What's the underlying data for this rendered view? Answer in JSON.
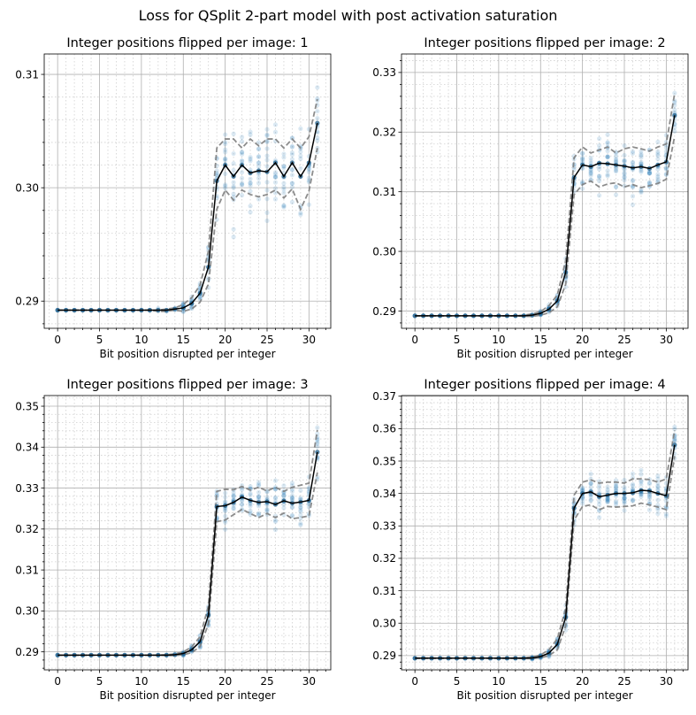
{
  "suptitle": "Loss for QSplit 2-part model with post activation saturation",
  "colors": {
    "scatter": "#1f77b4",
    "mean_line": "#000000",
    "band_line": "#808080",
    "grid_major": "#b0b0b0",
    "grid_minor": "#d0d0d0"
  },
  "chart_data": [
    {
      "type": "line",
      "title": "Integer positions flipped per image: 1",
      "xlabel": "Bit position disrupted per integer",
      "ylabel": "",
      "xlim": [
        -1.6,
        32.6
      ],
      "ylim": [
        0.2876,
        0.3118
      ],
      "xticks": [
        0,
        5,
        10,
        15,
        20,
        25,
        30
      ],
      "xtick_labels": [
        "0",
        "5",
        "10",
        "15",
        "20",
        "25",
        "30"
      ],
      "yticks": [
        0.29,
        0.3,
        0.31
      ],
      "ytick_labels": [
        "0.29",
        "0.30",
        "0.31"
      ],
      "grid": true,
      "x": [
        0,
        1,
        2,
        3,
        4,
        5,
        6,
        7,
        8,
        9,
        10,
        11,
        12,
        13,
        14,
        15,
        16,
        17,
        18,
        19,
        20,
        21,
        22,
        23,
        24,
        25,
        26,
        27,
        28,
        29,
        30,
        31
      ],
      "series": [
        {
          "role": "mean",
          "values": [
            0.2892,
            0.2892,
            0.2892,
            0.2892,
            0.2892,
            0.2892,
            0.2892,
            0.2892,
            0.2892,
            0.2892,
            0.2892,
            0.2892,
            0.2892,
            0.2892,
            0.2893,
            0.2894,
            0.2898,
            0.2907,
            0.293,
            0.3006,
            0.302,
            0.301,
            0.302,
            0.3013,
            0.3015,
            0.3014,
            0.3022,
            0.301,
            0.3022,
            0.301,
            0.3022,
            0.3057
          ]
        },
        {
          "role": "upper",
          "values": [
            0.2892,
            0.2892,
            0.2892,
            0.2892,
            0.2892,
            0.2892,
            0.2892,
            0.2892,
            0.2892,
            0.2892,
            0.2892,
            0.2892,
            0.2892,
            0.2893,
            0.2894,
            0.2897,
            0.2903,
            0.2914,
            0.2944,
            0.3035,
            0.3043,
            0.3043,
            0.3035,
            0.3043,
            0.3037,
            0.3043,
            0.3043,
            0.3035,
            0.3043,
            0.3035,
            0.3045,
            0.3078
          ]
        },
        {
          "role": "lower",
          "values": [
            0.2892,
            0.2892,
            0.2892,
            0.2892,
            0.2892,
            0.2892,
            0.2892,
            0.2892,
            0.2892,
            0.2892,
            0.2892,
            0.2892,
            0.2891,
            0.2891,
            0.2892,
            0.2891,
            0.2893,
            0.2899,
            0.2915,
            0.2981,
            0.2998,
            0.2989,
            0.2998,
            0.2994,
            0.2992,
            0.2994,
            0.2998,
            0.2991,
            0.2999,
            0.2981,
            0.2997,
            0.3035
          ]
        }
      ]
    },
    {
      "type": "line",
      "title": "Integer positions flipped per image: 2",
      "xlabel": "Bit position disrupted per integer",
      "ylabel": "",
      "xlim": [
        -1.6,
        32.6
      ],
      "ylim": [
        0.2871,
        0.3331
      ],
      "xticks": [
        0,
        5,
        10,
        15,
        20,
        25,
        30
      ],
      "xtick_labels": [
        "0",
        "5",
        "10",
        "15",
        "20",
        "25",
        "30"
      ],
      "yticks": [
        0.29,
        0.3,
        0.31,
        0.32,
        0.33
      ],
      "ytick_labels": [
        "0.29",
        "0.30",
        "0.31",
        "0.32",
        "0.33"
      ],
      "grid": true,
      "x": [
        0,
        1,
        2,
        3,
        4,
        5,
        6,
        7,
        8,
        9,
        10,
        11,
        12,
        13,
        14,
        15,
        16,
        17,
        18,
        19,
        20,
        21,
        22,
        23,
        24,
        25,
        26,
        27,
        28,
        29,
        30,
        31
      ],
      "series": [
        {
          "role": "mean",
          "values": [
            0.2892,
            0.2892,
            0.2892,
            0.2892,
            0.2892,
            0.2892,
            0.2892,
            0.2892,
            0.2892,
            0.2892,
            0.2892,
            0.2892,
            0.2892,
            0.2892,
            0.2893,
            0.2896,
            0.2903,
            0.2917,
            0.2965,
            0.3124,
            0.3145,
            0.3142,
            0.3148,
            0.3147,
            0.3145,
            0.3143,
            0.314,
            0.3142,
            0.3139,
            0.3145,
            0.315,
            0.3228
          ]
        },
        {
          "role": "upper",
          "values": [
            0.2892,
            0.2892,
            0.2892,
            0.2892,
            0.2892,
            0.2892,
            0.2892,
            0.2892,
            0.2892,
            0.2892,
            0.2892,
            0.2892,
            0.2892,
            0.2893,
            0.2895,
            0.2899,
            0.2909,
            0.2927,
            0.2985,
            0.3157,
            0.3175,
            0.3165,
            0.317,
            0.3175,
            0.3165,
            0.3172,
            0.3175,
            0.3172,
            0.3168,
            0.3175,
            0.318,
            0.3265
          ]
        },
        {
          "role": "lower",
          "values": [
            0.2892,
            0.2892,
            0.2892,
            0.2892,
            0.2892,
            0.2892,
            0.2892,
            0.2892,
            0.2892,
            0.2892,
            0.2892,
            0.2892,
            0.2892,
            0.2891,
            0.2891,
            0.2893,
            0.2897,
            0.2907,
            0.2945,
            0.3095,
            0.3112,
            0.3118,
            0.3108,
            0.3113,
            0.3115,
            0.3108,
            0.3112,
            0.3107,
            0.311,
            0.3114,
            0.3121,
            0.3193
          ]
        }
      ]
    },
    {
      "type": "line",
      "title": "Integer positions flipped per image: 3",
      "xlabel": "Bit position disrupted per integer",
      "ylabel": "",
      "xlim": [
        -1.6,
        32.6
      ],
      "ylim": [
        0.2856,
        0.3526
      ],
      "xticks": [
        0,
        5,
        10,
        15,
        20,
        25,
        30
      ],
      "xtick_labels": [
        "0",
        "5",
        "10",
        "15",
        "20",
        "25",
        "30"
      ],
      "yticks": [
        0.29,
        0.3,
        0.31,
        0.32,
        0.33,
        0.34,
        0.35
      ],
      "ytick_labels": [
        "0.29",
        "0.30",
        "0.31",
        "0.32",
        "0.33",
        "0.34",
        "0.35"
      ],
      "grid": true,
      "x": [
        0,
        1,
        2,
        3,
        4,
        5,
        6,
        7,
        8,
        9,
        10,
        11,
        12,
        13,
        14,
        15,
        16,
        17,
        18,
        19,
        20,
        21,
        22,
        23,
        24,
        25,
        26,
        27,
        28,
        29,
        30,
        31
      ],
      "series": [
        {
          "role": "mean",
          "values": [
            0.2892,
            0.2892,
            0.2892,
            0.2892,
            0.2892,
            0.2892,
            0.2892,
            0.2892,
            0.2892,
            0.2892,
            0.2892,
            0.2892,
            0.2892,
            0.2892,
            0.2893,
            0.2896,
            0.2905,
            0.2925,
            0.299,
            0.3255,
            0.3257,
            0.3265,
            0.3278,
            0.327,
            0.3265,
            0.3267,
            0.326,
            0.3269,
            0.3263,
            0.3266,
            0.327,
            0.3388
          ]
        },
        {
          "role": "upper",
          "values": [
            0.2892,
            0.2892,
            0.2892,
            0.2892,
            0.2892,
            0.2892,
            0.2892,
            0.2892,
            0.2892,
            0.2892,
            0.2892,
            0.2892,
            0.2892,
            0.2893,
            0.2895,
            0.29,
            0.2912,
            0.2937,
            0.3012,
            0.3292,
            0.3297,
            0.3296,
            0.3304,
            0.3295,
            0.3302,
            0.3293,
            0.3302,
            0.3292,
            0.3302,
            0.3307,
            0.3312,
            0.3442
          ]
        },
        {
          "role": "lower",
          "values": [
            0.2892,
            0.2892,
            0.2892,
            0.2892,
            0.2892,
            0.2892,
            0.2892,
            0.2892,
            0.2892,
            0.2892,
            0.2892,
            0.2892,
            0.2892,
            0.2891,
            0.2891,
            0.2893,
            0.2898,
            0.2913,
            0.2968,
            0.3218,
            0.3222,
            0.3235,
            0.3248,
            0.3238,
            0.3228,
            0.3238,
            0.3228,
            0.3239,
            0.3225,
            0.3228,
            0.3232,
            0.3338
          ]
        }
      ]
    },
    {
      "type": "line",
      "title": "Integer positions flipped per image: 4",
      "xlabel": "Bit position disrupted per integer",
      "ylabel": "",
      "xlim": [
        -1.6,
        32.6
      ],
      "ylim": [
        0.2856,
        0.3702
      ],
      "xticks": [
        0,
        5,
        10,
        15,
        20,
        25,
        30
      ],
      "xtick_labels": [
        "0",
        "5",
        "10",
        "15",
        "20",
        "25",
        "30"
      ],
      "yticks": [
        0.29,
        0.3,
        0.31,
        0.32,
        0.33,
        0.34,
        0.35,
        0.36,
        0.37
      ],
      "ytick_labels": [
        "0.29",
        "0.30",
        "0.31",
        "0.32",
        "0.33",
        "0.34",
        "0.35",
        "0.36",
        "0.37"
      ],
      "grid": true,
      "x": [
        0,
        1,
        2,
        3,
        4,
        5,
        6,
        7,
        8,
        9,
        10,
        11,
        12,
        13,
        14,
        15,
        16,
        17,
        18,
        19,
        20,
        21,
        22,
        23,
        24,
        25,
        26,
        27,
        28,
        29,
        30,
        31
      ],
      "series": [
        {
          "role": "mean",
          "values": [
            0.2892,
            0.2892,
            0.2892,
            0.2892,
            0.2892,
            0.2892,
            0.2892,
            0.2892,
            0.2892,
            0.2892,
            0.2892,
            0.2892,
            0.2892,
            0.2892,
            0.2893,
            0.2897,
            0.2908,
            0.2935,
            0.3018,
            0.3355,
            0.34,
            0.3405,
            0.339,
            0.3395,
            0.34,
            0.34,
            0.3402,
            0.341,
            0.3408,
            0.34,
            0.3393,
            0.355
          ]
        },
        {
          "role": "upper",
          "values": [
            0.2892,
            0.2892,
            0.2892,
            0.2892,
            0.2892,
            0.2892,
            0.2892,
            0.2892,
            0.2892,
            0.2892,
            0.2892,
            0.2892,
            0.2892,
            0.2893,
            0.2896,
            0.2902,
            0.2918,
            0.2952,
            0.3045,
            0.3395,
            0.3435,
            0.3442,
            0.3432,
            0.3435,
            0.3435,
            0.3432,
            0.3445,
            0.3445,
            0.3443,
            0.3435,
            0.3445,
            0.3595
          ]
        },
        {
          "role": "lower",
          "values": [
            0.2892,
            0.2892,
            0.2892,
            0.2892,
            0.2892,
            0.2892,
            0.2892,
            0.2892,
            0.2892,
            0.2892,
            0.2892,
            0.2892,
            0.2892,
            0.2891,
            0.2891,
            0.2893,
            0.29,
            0.2918,
            0.2992,
            0.3318,
            0.336,
            0.3365,
            0.335,
            0.336,
            0.3358,
            0.336,
            0.3362,
            0.337,
            0.3365,
            0.3358,
            0.335,
            0.3515
          ]
        }
      ]
    }
  ]
}
